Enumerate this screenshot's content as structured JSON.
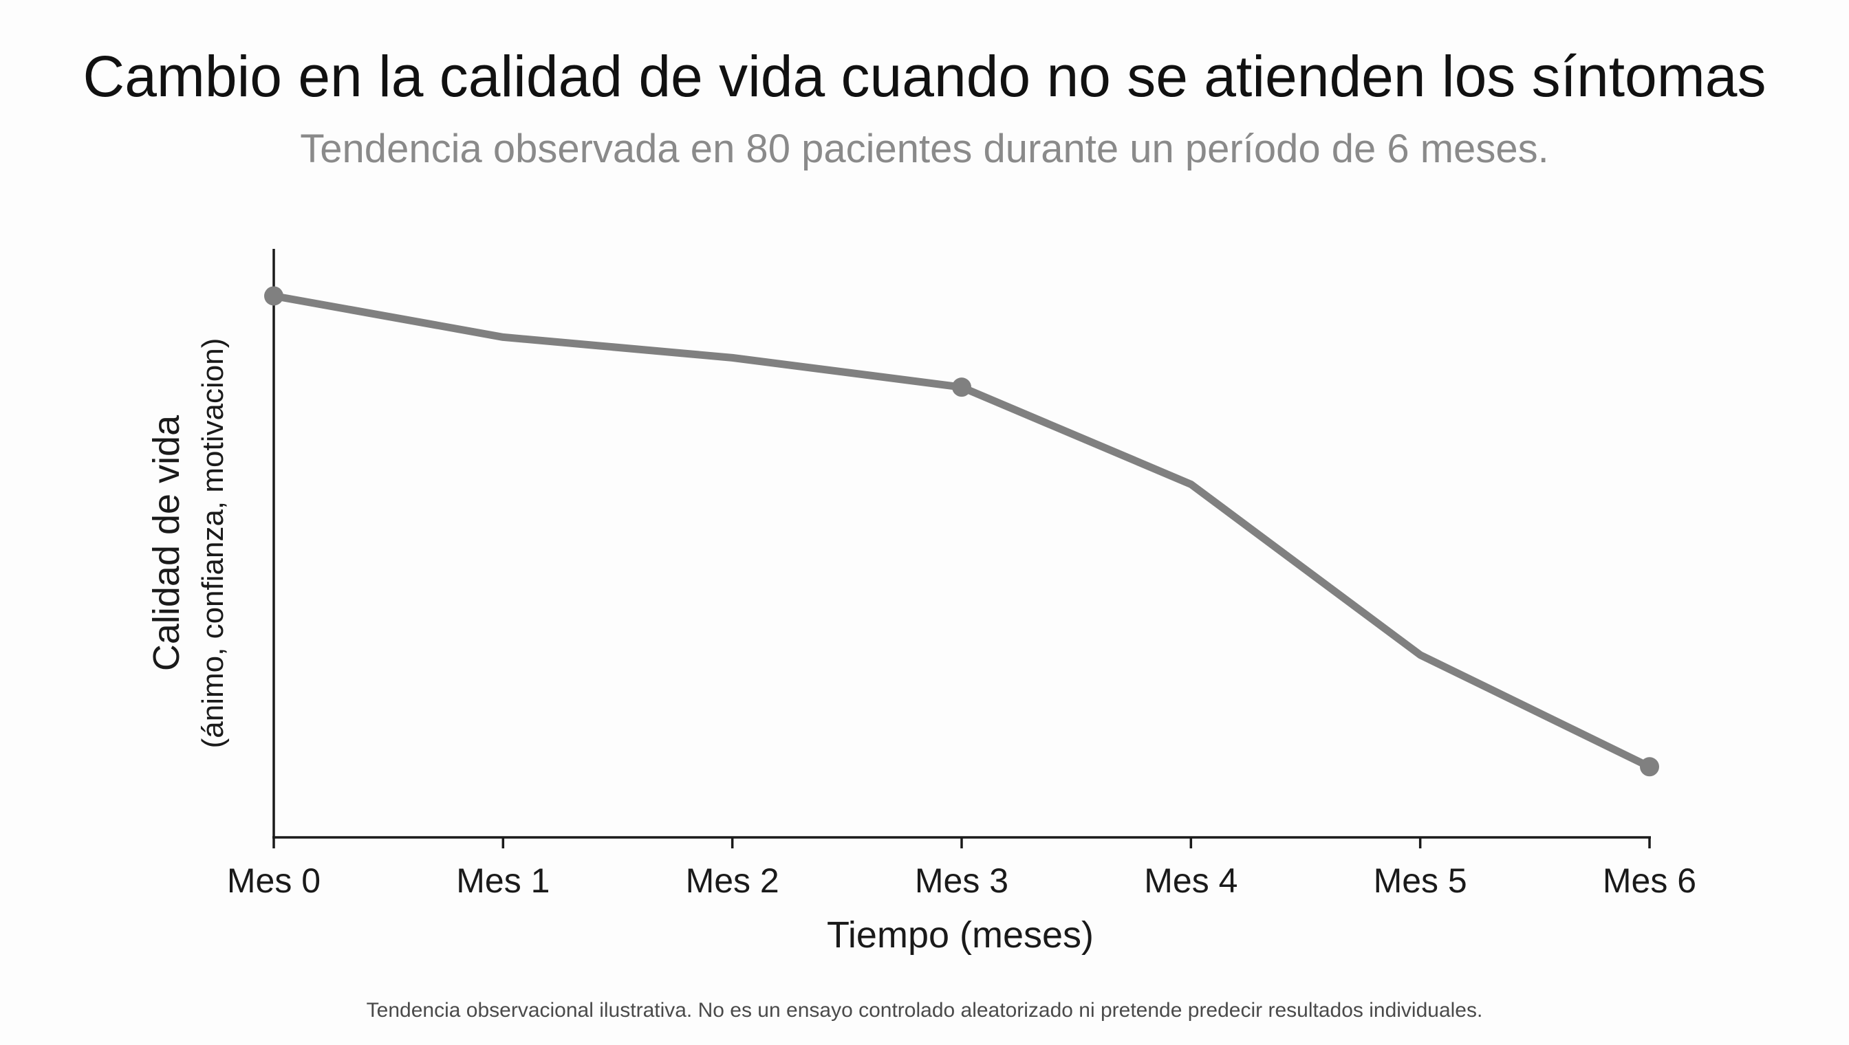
{
  "chart_data": {
    "type": "line",
    "title": "Cambio en la calidad de vida cuando no se atienden los síntomas",
    "subtitle": "Tendencia observada en 80 pacientes durante un período de 6 meses.",
    "xlabel": "Tiempo (meses)",
    "ylabel": "Calidad de vida",
    "ylabel_sub": "(ánimo, confianza, motivacion)",
    "categories": [
      "Mes 0",
      "Mes 1",
      "Mes 2",
      "Mes 3",
      "Mes 4",
      "Mes 5",
      "Mes 6"
    ],
    "series": [
      {
        "values": [
          92,
          85,
          81.5,
          76.5,
          60,
          31,
          12
        ],
        "color": "#808080",
        "markers_at": [
          0,
          3,
          6
        ]
      }
    ],
    "ylim": [
      0,
      100
    ],
    "y_ticks_shown": false,
    "grid": false,
    "legend": "none",
    "footnote": "Tendencia observacional ilustrativa. No es un ensayo controlado aleatorizado ni pretende predecir resultados individuales."
  }
}
